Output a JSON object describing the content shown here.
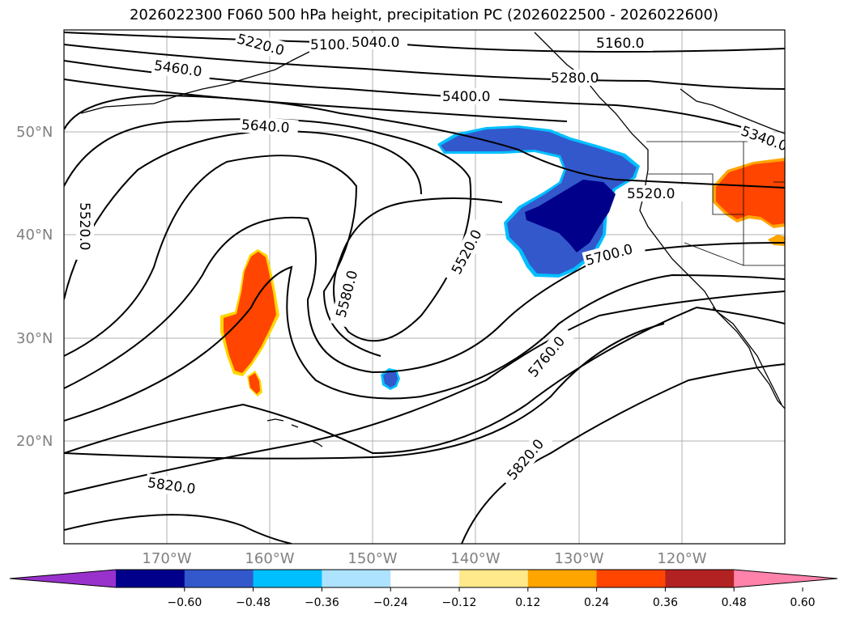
{
  "title": "2026022300 F060 500 hPa height, precipitation PC (2026022500 - 2026022600)",
  "map": {
    "lat_labels": [
      "50°N",
      "40°N",
      "30°N",
      "20°N"
    ],
    "lon_labels": [
      "170°W",
      "160°W",
      "150°W",
      "140°W",
      "130°W",
      "120°W"
    ],
    "contour_labels": [
      "5220.0",
      "5100.0",
      "5040.0",
      "5160.0",
      "5460.0",
      "5400.0",
      "5280.0",
      "5640.0",
      "5340.0",
      "5520.0",
      "5520.0",
      "5520.0",
      "5580.0",
      "5700.0",
      "5760.0",
      "5820.0",
      "5820.0"
    ]
  },
  "colorbar": {
    "ticks": [
      "−0.60",
      "−0.48",
      "−0.36",
      "−0.24",
      "−0.12",
      "0.12",
      "0.24",
      "0.36",
      "0.48",
      "0.60"
    ],
    "colors": [
      "#9932cc",
      "#00008b",
      "#3358cc",
      "#00bfff",
      "#ade3ff",
      "#ffffff",
      "#ffe98a",
      "#ffa500",
      "#ff4500",
      "#b22222",
      "#ff82ab"
    ],
    "extend": "both"
  },
  "legend": {
    "contour_field": "500 hPa height",
    "shaded_field": "precipitation PC"
  }
}
